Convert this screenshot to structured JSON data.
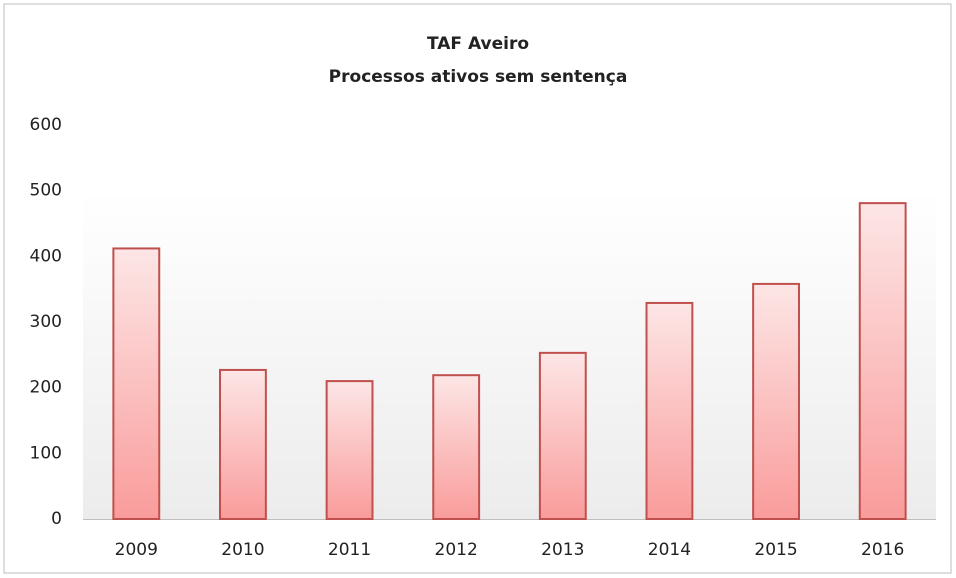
{
  "chart_data": {
    "type": "bar",
    "title": "TAF Aveiro",
    "subtitle": "Processos ativos sem sentença",
    "categories": [
      "2009",
      "2010",
      "2011",
      "2012",
      "2013",
      "2014",
      "2015",
      "2016"
    ],
    "values": [
      412,
      227,
      210,
      219,
      253,
      329,
      358,
      481
    ],
    "color": "#c0504d",
    "ylim": [
      0,
      600
    ],
    "yticks": [
      0,
      100,
      200,
      300,
      400,
      500,
      600
    ],
    "grid": false
  }
}
